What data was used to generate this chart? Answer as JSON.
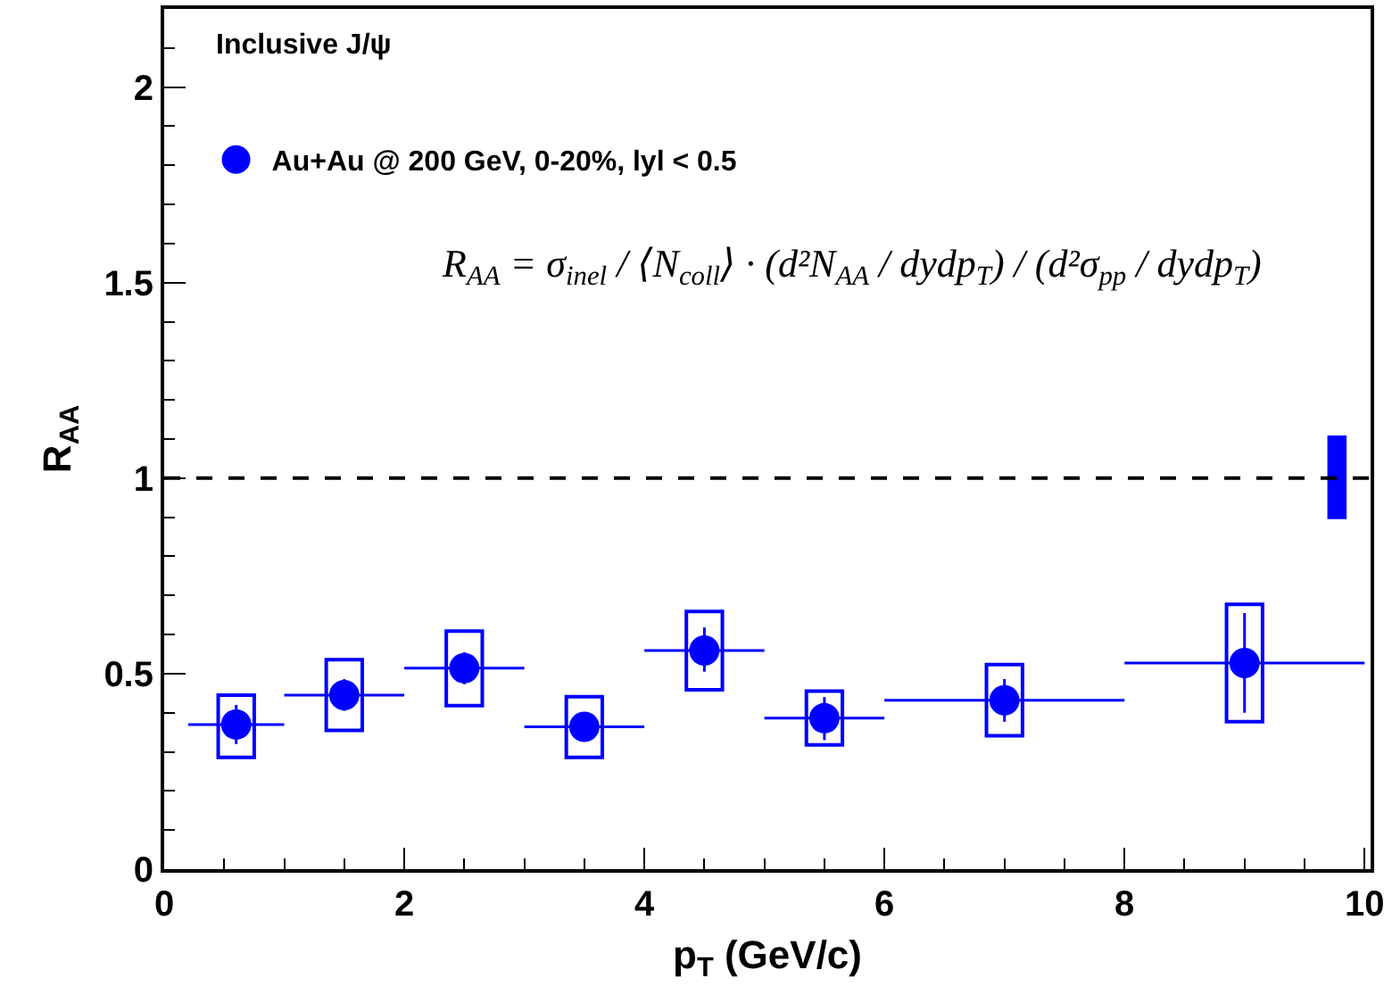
{
  "chart_data": {
    "type": "scatter",
    "xlabel": "p$_{T}$ (GeV/c)",
    "ylabel": "R$_{AA}$",
    "annotations": [
      "Inclusive J/ψ",
      "R$_{AA}$ = σ$_{inel}$ / ⟨N$_{coll}$⟩ · (d²N$_{AA}$ / dydp$_{T}$) / (d²σ$_{pp}$ / dydp$_{T}$)"
    ],
    "xlim": [
      0,
      10.05
    ],
    "xticks": [
      0,
      2,
      4,
      6,
      8,
      10
    ],
    "ylim": [
      0,
      2.2
    ],
    "yticks": [
      0,
      0.5,
      1,
      1.5,
      2
    ],
    "series": [
      {
        "type": "bar",
        "color": "#0000ff",
        "line_style": "solid",
        "x": [
          0.6,
          1.5,
          2.5,
          3.5,
          4.5,
          5.5,
          7,
          9
        ],
        "base": [
          0.286,
          0.355,
          0.418,
          0.286,
          0.459,
          0.318,
          0.341,
          0.377
        ],
        "values": [
          0.159,
          0.181,
          0.191,
          0.155,
          0.2,
          0.137,
          0.182,
          0.3
        ]
      },
      {
        "type": "bar",
        "color": "#0000ff",
        "x": [
          9.77
        ],
        "base": [
          0.895
        ],
        "values": [
          0.214
        ]
      },
      {
        "name": "Au+Au @ 200 GeV, 0-20%, lyl < 0.5",
        "color": "#0000ff",
        "x": [
          0.6,
          1.5,
          2.5,
          3.5,
          4.5,
          5.5,
          7,
          9
        ],
        "values": [
          0.37,
          0.445,
          0.514,
          0.364,
          0.559,
          0.386,
          0.432,
          0.527
        ],
        "errors": [
          [
            0.32,
            0.42
          ],
          [
            0.405,
            0.486
          ],
          [
            0.473,
            0.555
          ],
          null,
          [
            0.505,
            0.618
          ],
          [
            0.33,
            0.44
          ],
          [
            0.377,
            0.486
          ],
          [
            0.4,
            0.655
          ]
        ],
        "xerrors": [
          [
            0.2,
            1
          ],
          [
            1,
            2
          ],
          [
            2,
            3
          ],
          [
            3,
            4
          ],
          [
            4,
            5
          ],
          [
            5,
            6
          ],
          [
            6,
            8
          ],
          [
            8,
            10
          ]
        ]
      }
    ],
    "ref_lines": [
      {
        "axis": "y",
        "value": 1,
        "color": "#000000",
        "line_style": "dashed"
      }
    ],
    "marker": "circle",
    "legend": "top left",
    "grid": false
  }
}
